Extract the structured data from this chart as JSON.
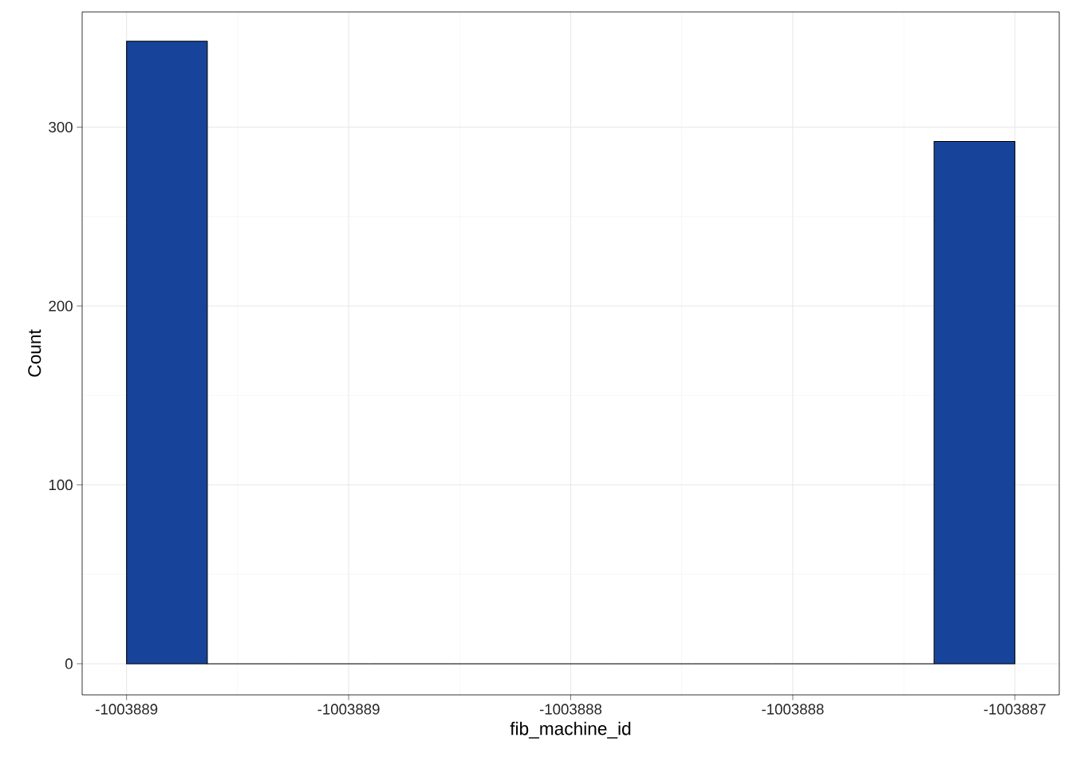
{
  "chart_data": {
    "type": "histogram",
    "xlabel": "fib_machine_id",
    "ylabel": "Count",
    "bins": [
      -1003889,
      -1003888.8182,
      -1003888.6364,
      -1003888.4545,
      -1003888.2727,
      -1003888.0909,
      -1003887.9091,
      -1003887.7273,
      -1003887.5455,
      -1003887.3636,
      -1003887.1818,
      -1003887
    ],
    "values": [
      348,
      0,
      0,
      0,
      0,
      0,
      0,
      0,
      0,
      0,
      292
    ],
    "color": "#17449a",
    "xlim": [
      -1003889.1,
      -1003886.9
    ],
    "ylim": [
      -17.4,
      364.4
    ],
    "xticks": [
      {
        "value": -1003889,
        "label": "-1003889"
      },
      {
        "value": -1003888.5,
        "label": "-1003889"
      },
      {
        "value": -1003888,
        "label": "-1003888"
      },
      {
        "value": -1003887.5,
        "label": "-1003888"
      },
      {
        "value": -1003887,
        "label": "-1003887"
      }
    ],
    "yticks": [
      0,
      100,
      200,
      300
    ],
    "grid": true
  }
}
